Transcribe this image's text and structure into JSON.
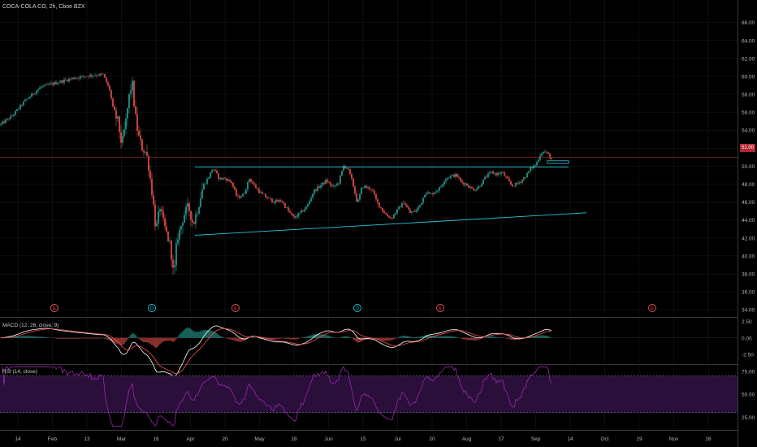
{
  "header": {
    "title": "COCA-COLA CO, 2h, Cboe BZX"
  },
  "current_price": {
    "label": "51.00",
    "value": 51.0,
    "color": "#b22833"
  },
  "colors": {
    "background": "#000000",
    "up": "#26a69a",
    "down": "#ef5350",
    "trendline": "#26c6da",
    "macd_line": "#ffffff",
    "signal_line": "#ef5350",
    "rsi_line": "#9c27b0",
    "rsi_band": "#2a0f3a",
    "grid": "#1c1c1c",
    "axis_text": "#b2b5be"
  },
  "price_axis": {
    "labels": [
      "66.00",
      "64.00",
      "62.00",
      "60.00",
      "58.00",
      "56.00",
      "54.00",
      "52.00",
      "50.00",
      "48.00",
      "46.00",
      "44.00",
      "42.00",
      "40.00",
      "38.00",
      "36.00",
      "34.00"
    ]
  },
  "macd_panel": {
    "label": "MACD (12, 26, close, 9)",
    "axis_labels": [
      "2.50",
      "0.00",
      "-2.50"
    ]
  },
  "rsi_panel": {
    "label": "RSI (14, close)",
    "axis_labels": [
      "75.00",
      "50.00",
      "25.00"
    ]
  },
  "time_axis": {
    "labels": [
      "14",
      "Feb",
      "13",
      "Mar",
      "16",
      "Apr",
      "20",
      "May",
      "18",
      "Jun",
      "15",
      "Jul",
      "20",
      "Aug",
      "17",
      "Sep",
      "14",
      "Oct",
      "19",
      "Nov",
      "16"
    ]
  },
  "event_markers": [
    {
      "text": "E",
      "type": "earnings"
    },
    {
      "text": "D",
      "type": "dividend"
    },
    {
      "text": "E",
      "type": "earnings"
    },
    {
      "text": "D",
      "type": "dividend"
    },
    {
      "text": "E",
      "type": "earnings"
    },
    {
      "text": "E",
      "type": "earnings"
    }
  ],
  "chart_data": {
    "type": "candlestick",
    "price_anchors": [
      [
        0,
        54.6
      ],
      [
        15,
        55.6
      ],
      [
        30,
        57.2
      ],
      [
        50,
        58.8
      ],
      [
        70,
        59.3
      ],
      [
        90,
        59.8
      ],
      [
        110,
        60.1
      ],
      [
        127,
        60.2
      ],
      [
        135,
        58.5
      ],
      [
        140,
        56
      ],
      [
        145,
        55
      ],
      [
        150,
        52.3
      ],
      [
        155,
        55
      ],
      [
        160,
        58.5
      ],
      [
        163,
        59
      ],
      [
        166,
        56
      ],
      [
        170,
        53.5
      ],
      [
        175,
        52
      ],
      [
        180,
        51.5
      ],
      [
        183,
        50
      ],
      [
        188,
        46.5
      ],
      [
        192,
        42.8
      ],
      [
        197,
        45.5
      ],
      [
        200,
        44
      ],
      [
        205,
        42.5
      ],
      [
        210,
        41
      ],
      [
        214,
        37.5
      ],
      [
        218,
        42
      ],
      [
        222,
        43
      ],
      [
        226,
        44.5
      ],
      [
        232,
        45.5
      ],
      [
        238,
        43.5
      ],
      [
        244,
        45.5
      ],
      [
        250,
        47.8
      ],
      [
        257,
        48.8
      ],
      [
        262,
        49.8
      ],
      [
        270,
        48.6
      ],
      [
        278,
        48.6
      ],
      [
        285,
        48.2
      ],
      [
        292,
        46.5
      ],
      [
        300,
        46.8
      ],
      [
        307,
        48.6
      ],
      [
        315,
        47.6
      ],
      [
        322,
        46.9
      ],
      [
        330,
        46.4
      ],
      [
        338,
        46
      ],
      [
        346,
        46.2
      ],
      [
        355,
        45
      ],
      [
        362,
        44.2
      ],
      [
        370,
        44.8
      ],
      [
        378,
        45.5
      ],
      [
        386,
        47.2
      ],
      [
        394,
        47.8
      ],
      [
        402,
        48.4
      ],
      [
        410,
        47.6
      ],
      [
        417,
        48.2
      ],
      [
        423,
        50
      ],
      [
        428,
        49.8
      ],
      [
        434,
        48.2
      ],
      [
        440,
        45.8
      ],
      [
        446,
        47.8
      ],
      [
        452,
        47.6
      ],
      [
        458,
        47.4
      ],
      [
        464,
        46
      ],
      [
        470,
        45.2
      ],
      [
        476,
        44.5
      ],
      [
        482,
        44.2
      ],
      [
        490,
        45.2
      ],
      [
        497,
        46
      ],
      [
        505,
        44.8
      ],
      [
        512,
        45
      ],
      [
        518,
        45.8
      ],
      [
        524,
        47.2
      ],
      [
        530,
        46.8
      ],
      [
        536,
        47.2
      ],
      [
        542,
        47.6
      ],
      [
        548,
        48.6
      ],
      [
        555,
        48.9
      ],
      [
        562,
        49
      ],
      [
        568,
        48.2
      ],
      [
        574,
        48
      ],
      [
        580,
        47.5
      ],
      [
        586,
        47.4
      ],
      [
        592,
        48
      ],
      [
        598,
        48.8
      ],
      [
        605,
        49.3
      ],
      [
        612,
        49.1
      ],
      [
        618,
        49.3
      ],
      [
        624,
        48.6
      ],
      [
        630,
        47.8
      ],
      [
        636,
        48
      ],
      [
        642,
        48.4
      ],
      [
        648,
        49
      ],
      [
        654,
        49.8
      ],
      [
        660,
        50.2
      ],
      [
        666,
        51.5
      ],
      [
        671,
        51.6
      ],
      [
        676,
        51.2
      ],
      [
        680,
        50.6
      ]
    ],
    "horizontal_level": 51.0,
    "trendlines": [
      {
        "name": "upper",
        "start": {
          "bar": 240,
          "price": 49.9
        },
        "end": {
          "bar": 700,
          "price": 49.9
        }
      },
      {
        "name": "lower",
        "start": {
          "bar": 240,
          "price": 42.3
        },
        "end": {
          "bar": 722,
          "price": 44.8
        }
      }
    ],
    "price_range": [
      33.2,
      67.6
    ],
    "macd_range": [
      -3.85,
      3.05
    ],
    "rsi_range": [
      12,
      82
    ],
    "rsi_levels": [
      70,
      30
    ]
  }
}
